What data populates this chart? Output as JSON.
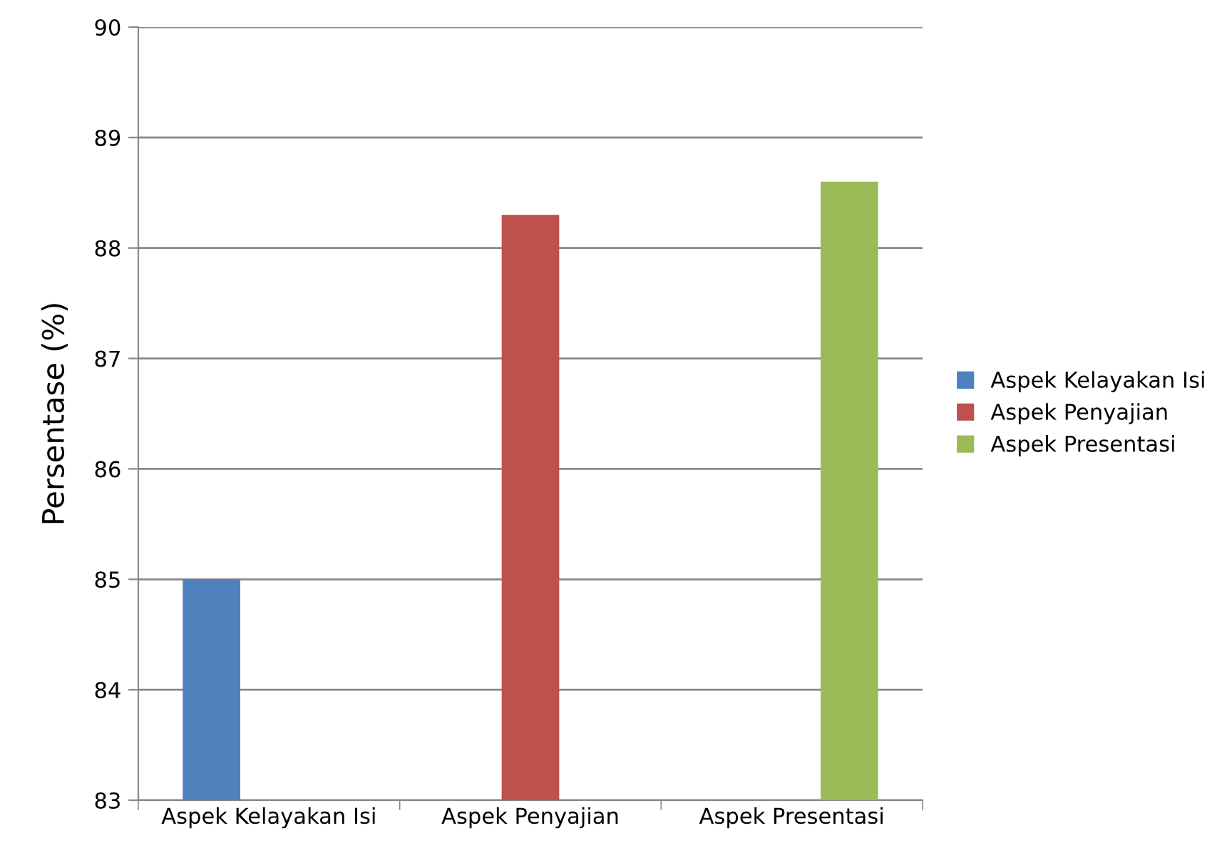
{
  "chart_data": {
    "type": "bar",
    "ylabel": "Persentase (%)",
    "categories": [
      "Aspek Kelayakan Isi",
      "Aspek Penyajian",
      "Aspek Presentasi"
    ],
    "series": [
      {
        "name": "Aspek Kelayakan Isi",
        "color": "#4f81bd",
        "values": [
          85,
          null,
          null
        ]
      },
      {
        "name": "Aspek Penyajian",
        "color": "#c0504d",
        "values": [
          null,
          88.3,
          null
        ]
      },
      {
        "name": "Aspek Presentasi",
        "color": "#9bbb59",
        "values": [
          null,
          null,
          88.6
        ]
      }
    ],
    "ylim": [
      83,
      90
    ],
    "yticks": [
      83,
      84,
      85,
      86,
      87,
      88,
      89,
      90
    ],
    "grid": "y",
    "legend": "right"
  }
}
